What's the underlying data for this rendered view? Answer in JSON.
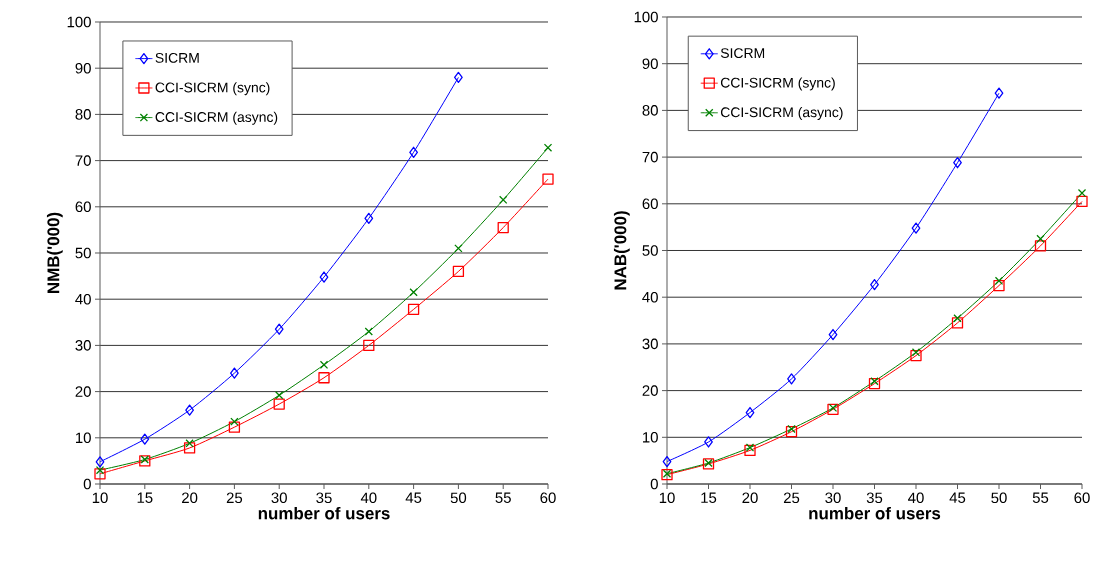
{
  "chart_data": [
    {
      "type": "line",
      "xlabel": "number of users",
      "ylabel": "NMB('000)",
      "x": [
        10,
        15,
        20,
        25,
        30,
        35,
        40,
        45,
        50,
        55,
        60
      ],
      "xlim": [
        10,
        60
      ],
      "xticks": [
        10,
        15,
        20,
        25,
        30,
        35,
        40,
        45,
        50,
        55,
        60
      ],
      "ylim": [
        0,
        100
      ],
      "yticks": [
        0,
        10,
        20,
        30,
        40,
        50,
        60,
        70,
        80,
        90,
        100
      ],
      "grid": "y",
      "legend": "top left",
      "series": [
        {
          "name": "SICRM",
          "color": "#0000ff",
          "marker": "diamond",
          "values": [
            4.8,
            9.7,
            16,
            24,
            33.5,
            44.8,
            57.5,
            71.8,
            88,
            null,
            null
          ]
        },
        {
          "name": "CCI-SICRM (sync)",
          "color": "#ff0000",
          "marker": "square",
          "values": [
            2.2,
            5,
            7.8,
            12.3,
            17.3,
            23,
            30,
            37.8,
            46,
            55.5,
            66
          ]
        },
        {
          "name": "CCI-SICRM (async)",
          "color": "#008000",
          "marker": "cross",
          "values": [
            3,
            5.3,
            8.8,
            13.5,
            19.2,
            25.8,
            33,
            41.5,
            51,
            61.5,
            72.8
          ]
        }
      ]
    },
    {
      "type": "line",
      "xlabel": "number of users",
      "ylabel": "NAB('000)",
      "x": [
        10,
        15,
        20,
        25,
        30,
        35,
        40,
        45,
        50,
        55,
        60
      ],
      "xlim": [
        10,
        60
      ],
      "xticks": [
        10,
        15,
        20,
        25,
        30,
        35,
        40,
        45,
        50,
        55,
        60
      ],
      "ylim": [
        0,
        100
      ],
      "yticks": [
        0,
        10,
        20,
        30,
        40,
        50,
        60,
        70,
        80,
        90,
        100
      ],
      "grid": "y",
      "legend": "top left",
      "series": [
        {
          "name": "SICRM",
          "color": "#0000ff",
          "marker": "diamond",
          "values": [
            4.8,
            9,
            15.3,
            22.5,
            32,
            42.7,
            54.8,
            68.8,
            83.7,
            null,
            null
          ]
        },
        {
          "name": "CCI-SICRM (sync)",
          "color": "#ff0000",
          "marker": "square",
          "values": [
            2,
            4.3,
            7.2,
            11.2,
            16,
            21.5,
            27.5,
            34.5,
            42.5,
            51,
            60.5
          ]
        },
        {
          "name": "CCI-SICRM (async)",
          "color": "#008000",
          "marker": "cross",
          "values": [
            2.2,
            4.5,
            7.8,
            11.8,
            16.3,
            22,
            28.2,
            35.5,
            43.5,
            52.5,
            62.3
          ]
        }
      ]
    }
  ]
}
